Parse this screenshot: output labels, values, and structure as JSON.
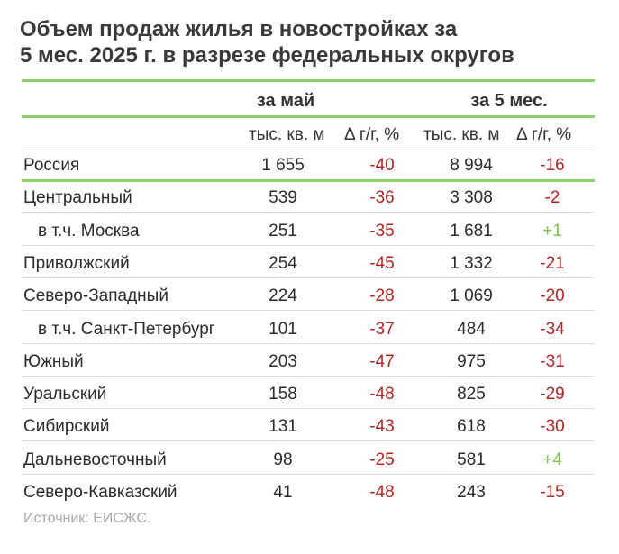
{
  "title_line1": "Объем продаж жилья в новостройках за",
  "title_line2": "5 мес. 2025 г. в разрезе федеральных округов",
  "group_may": "за май",
  "group_5m": "за 5 мес.",
  "unit_may_value": "тыс. кв. м",
  "unit_may_delta": "Δ г/г, %",
  "unit_5m_value": "тыс. кв. м",
  "unit_5m_delta": "Δ г/г, %",
  "rows": [
    {
      "label": "Россия",
      "may": "1 655",
      "may_delta": "-40",
      "m5": "8 994",
      "m5_delta": "-16"
    },
    {
      "label": "Центральный",
      "may": "539",
      "may_delta": "-36",
      "m5": "3 308",
      "m5_delta": "-2"
    },
    {
      "label": "в т.ч. Москва",
      "may": "251",
      "may_delta": "-35",
      "m5": "1 681",
      "m5_delta": "+1"
    },
    {
      "label": "Приволжский",
      "may": "254",
      "may_delta": "-45",
      "m5": "1 332",
      "m5_delta": "-21"
    },
    {
      "label": "Северо-Западный",
      "may": "224",
      "may_delta": "-28",
      "m5": "1 069",
      "m5_delta": "-20"
    },
    {
      "label": "в т.ч. Санкт-Петербург",
      "may": "101",
      "may_delta": "-37",
      "m5": "484",
      "m5_delta": "-34"
    },
    {
      "label": "Южный",
      "may": "203",
      "may_delta": "-47",
      "m5": "975",
      "m5_delta": "-31"
    },
    {
      "label": "Уральский",
      "may": "158",
      "may_delta": "-48",
      "m5": "825",
      "m5_delta": "-29"
    },
    {
      "label": "Сибирский",
      "may": "131",
      "may_delta": "-43",
      "m5": "618",
      "m5_delta": "-30"
    },
    {
      "label": "Дальневосточный",
      "may": "98",
      "may_delta": "-25",
      "m5": "581",
      "m5_delta": "+4"
    },
    {
      "label": "Северо-Кавказский",
      "may": "41",
      "may_delta": "-48",
      "m5": "243",
      "m5_delta": "-15"
    }
  ],
  "source": "Источник: ЕИСЖС.",
  "colors": {
    "accent_line": "#8fd06a",
    "negative": "#b12626",
    "positive": "#7ec14a"
  }
}
